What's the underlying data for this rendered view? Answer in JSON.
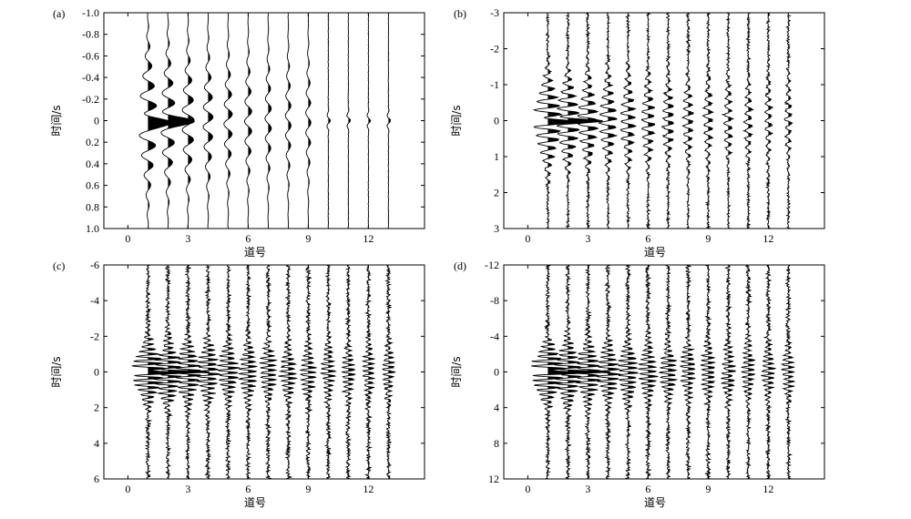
{
  "chart_data": [
    {
      "panel_label": "(a)",
      "type": "line",
      "subtype": "seismic-wiggle-traces",
      "xlabel": "道号",
      "ylabel": "时间/s",
      "x_ticks": [
        "0",
        "3",
        "6",
        "9",
        "12"
      ],
      "x_tick_values": [
        0,
        3,
        6,
        9,
        12
      ],
      "y_ticks": [
        "-1.0",
        "-0.8",
        "-0.6",
        "-0.4",
        "-0.2",
        "0",
        "0.2",
        "0.4",
        "0.6",
        "0.8",
        "1.0"
      ],
      "y_tick_values": [
        -1.0,
        -0.8,
        -0.6,
        -0.4,
        -0.2,
        0,
        0.2,
        0.4,
        0.6,
        0.8,
        1.0
      ],
      "xlim": [
        -1.2,
        14.8
      ],
      "ylim": [
        -1.0,
        1.0
      ],
      "y_inverted": true,
      "traces": [
        1,
        2,
        3,
        4,
        5,
        6,
        7,
        8,
        9,
        10,
        11,
        12,
        13
      ],
      "filled_positive": true,
      "style": "smooth"
    },
    {
      "panel_label": "(b)",
      "type": "line",
      "subtype": "seismic-wiggle-traces",
      "xlabel": "道号",
      "ylabel": "时间/s",
      "x_ticks": [
        "0",
        "3",
        "6",
        "9",
        "12"
      ],
      "x_tick_values": [
        0,
        3,
        6,
        9,
        12
      ],
      "y_ticks": [
        "-3",
        "-2",
        "-1",
        "0",
        "1",
        "2",
        "3"
      ],
      "y_tick_values": [
        -3,
        -2,
        -1,
        0,
        1,
        2,
        3
      ],
      "xlim": [
        -1.2,
        14.8
      ],
      "ylim": [
        -3,
        3
      ],
      "y_inverted": true,
      "traces": [
        1,
        2,
        3,
        4,
        5,
        6,
        7,
        8,
        9,
        10,
        11,
        12,
        13
      ],
      "filled_positive": true,
      "style": "oscillatory"
    },
    {
      "panel_label": "(c)",
      "type": "line",
      "subtype": "seismic-wiggle-traces",
      "xlabel": "道号",
      "ylabel": "时间/s",
      "x_ticks": [
        "0",
        "3",
        "6",
        "9",
        "12"
      ],
      "x_tick_values": [
        0,
        3,
        6,
        9,
        12
      ],
      "y_ticks": [
        "-6",
        "-4",
        "-2",
        "0",
        "2",
        "4",
        "6"
      ],
      "y_tick_values": [
        -6,
        -4,
        -2,
        0,
        2,
        4,
        6
      ],
      "xlim": [
        -1.2,
        14.8
      ],
      "ylim": [
        -6,
        6
      ],
      "y_inverted": true,
      "traces": [
        1,
        2,
        3,
        4,
        5,
        6,
        7,
        8,
        9,
        10,
        11,
        12,
        13
      ],
      "filled_positive": true,
      "style": "noisy"
    },
    {
      "panel_label": "(d)",
      "type": "line",
      "subtype": "seismic-wiggle-traces",
      "xlabel": "道号",
      "ylabel": "时间/s",
      "x_ticks": [
        "0",
        "3",
        "6",
        "9",
        "12"
      ],
      "x_tick_values": [
        0,
        3,
        6,
        9,
        12
      ],
      "y_ticks": [
        "-12",
        "-8",
        "-4",
        "0",
        "4",
        "8",
        "12"
      ],
      "y_tick_values": [
        -12,
        -8,
        -4,
        0,
        4,
        8,
        12
      ],
      "xlim": [
        -1.2,
        14.8
      ],
      "ylim": [
        -12,
        12
      ],
      "y_inverted": true,
      "traces": [
        1,
        2,
        3,
        4,
        5,
        6,
        7,
        8,
        9,
        10,
        11,
        12,
        13
      ],
      "filled_positive": true,
      "style": "noisy"
    }
  ]
}
